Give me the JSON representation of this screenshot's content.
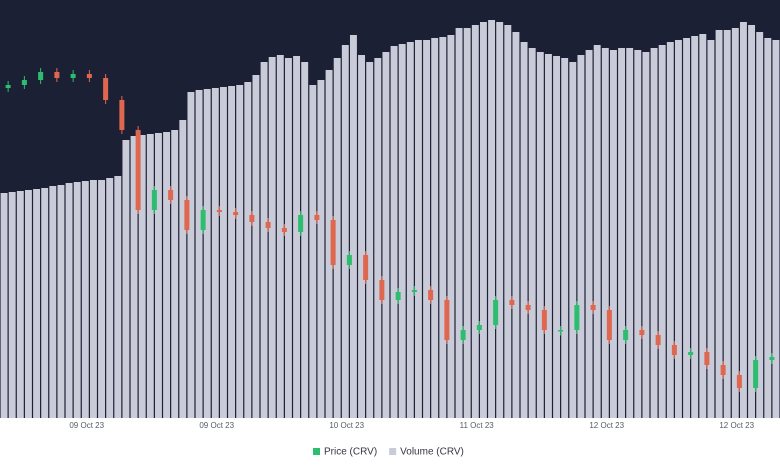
{
  "chart_data": {
    "type": "candlestick",
    "x_labels": [
      "09 Oct 23",
      "09 Oct 23",
      "10 Oct 23",
      "11 Oct 23",
      "12 Oct 23",
      "12 Oct 23"
    ],
    "ylim": [
      0.4,
      0.4418
    ],
    "y2lim": [
      0,
      418
    ],
    "background": "#1c2035",
    "series": [
      {
        "name": "Price (CRV)",
        "color": "#2dbd6e",
        "down_color": "#e0674f",
        "open": [
          0.433,
          0.4333,
          0.4338,
          0.4346,
          0.434,
          0.4344,
          0.434,
          0.4318,
          0.4288,
          0.4208,
          0.4228,
          0.4218,
          0.4188,
          0.4208,
          0.4206,
          0.4203,
          0.4196,
          0.419,
          0.4186,
          0.4203,
          0.4198,
          0.4153,
          0.4163,
          0.4138,
          0.4118,
          0.4126,
          0.4128,
          0.4118,
          0.4078,
          0.4088,
          0.4093,
          0.4118,
          0.4113,
          0.4108,
          0.4088,
          0.4088,
          0.4113,
          0.4108,
          0.4078,
          0.4088,
          0.4083,
          0.4073,
          0.4063,
          0.4066,
          0.4053,
          0.4043,
          0.403,
          0.4058
        ],
        "close": [
          0.4333,
          0.4338,
          0.4346,
          0.434,
          0.4344,
          0.434,
          0.4318,
          0.4288,
          0.4208,
          0.4228,
          0.4218,
          0.4188,
          0.4208,
          0.4206,
          0.4203,
          0.4196,
          0.419,
          0.4186,
          0.4203,
          0.4198,
          0.4153,
          0.4163,
          0.4138,
          0.4118,
          0.4126,
          0.4128,
          0.4118,
          0.4078,
          0.4088,
          0.4093,
          0.4118,
          0.4113,
          0.4108,
          0.4088,
          0.4088,
          0.4113,
          0.4108,
          0.4078,
          0.4088,
          0.4083,
          0.4073,
          0.4063,
          0.4066,
          0.4053,
          0.4043,
          0.403,
          0.4058,
          0.4061
        ]
      },
      {
        "name": "Volume (CRV)",
        "color": "#c9cbd9",
        "axis": "y2",
        "values": [
          225,
          226,
          227,
          228,
          229,
          230,
          232,
          233,
          235,
          236,
          237,
          238,
          238,
          240,
          242,
          278,
          282,
          283,
          284,
          285,
          286,
          288,
          298,
          326,
          328,
          329,
          330,
          331,
          332,
          333,
          336,
          343,
          356,
          361,
          363,
          360,
          362,
          356,
          333,
          338,
          348,
          360,
          373,
          383,
          363,
          356,
          360,
          366,
          372,
          374,
          376,
          378,
          378,
          380,
          381,
          383,
          390,
          390,
          393,
          396,
          398,
          396,
          393,
          386,
          376,
          370,
          366,
          364,
          362,
          360,
          356,
          363,
          368,
          373,
          370,
          368,
          370,
          370,
          368,
          366,
          370,
          373,
          376,
          378,
          380,
          382,
          384,
          378,
          388,
          388,
          390,
          396,
          393,
          386,
          380,
          378
        ]
      }
    ]
  }
}
